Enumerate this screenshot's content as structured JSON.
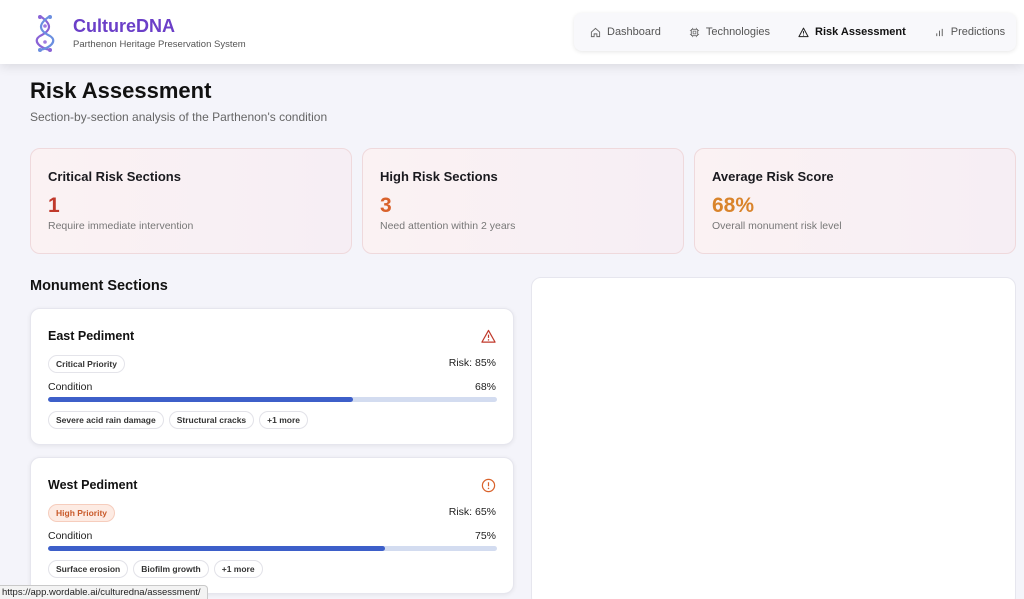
{
  "app": {
    "name": "CultureDNA",
    "subtitle": "Parthenon Heritage Preservation System",
    "brand_color": "#6b3fc8"
  },
  "nav": {
    "items": [
      {
        "label": "Dashboard",
        "icon": "home-icon",
        "active": false
      },
      {
        "label": "Technologies",
        "icon": "chip-icon",
        "active": false
      },
      {
        "label": "Risk Assessment",
        "icon": "warning-icon",
        "active": true
      },
      {
        "label": "Predictions",
        "icon": "bar-chart-icon",
        "active": false
      }
    ]
  },
  "page": {
    "title": "Risk Assessment",
    "subtitle": "Section-by-section analysis of the Parthenon's condition"
  },
  "stats": [
    {
      "label": "Critical Risk Sections",
      "value": "1",
      "desc": "Require immediate intervention",
      "color": "#c0392b"
    },
    {
      "label": "High Risk Sections",
      "value": "3",
      "desc": "Need attention within 2 years",
      "color": "#d9622b"
    },
    {
      "label": "Average Risk Score",
      "value": "68%",
      "desc": "Overall monument risk level",
      "color": "#d9842b"
    }
  ],
  "sections": {
    "heading": "Monument Sections",
    "cards": [
      {
        "name": "East Pediment",
        "icon": "warning-triangle-icon",
        "priority": "Critical Priority",
        "risk": "Risk: 85%",
        "condition_label": "Condition",
        "condition_text": "68%",
        "condition": 0.68,
        "tags": [
          "Severe acid rain damage",
          "Structural cracks",
          "+1 more"
        ]
      },
      {
        "name": "West Pediment",
        "icon": "alert-circle-icon",
        "priority": "High Priority",
        "risk": "Risk: 65%",
        "condition_label": "Condition",
        "condition_text": "75%",
        "condition": 0.75,
        "tags": [
          "Surface erosion",
          "Biofilm growth",
          "+1 more"
        ]
      }
    ]
  },
  "status_bar": {
    "url": "https://app.wordable.ai/culturedna/assessment/"
  }
}
